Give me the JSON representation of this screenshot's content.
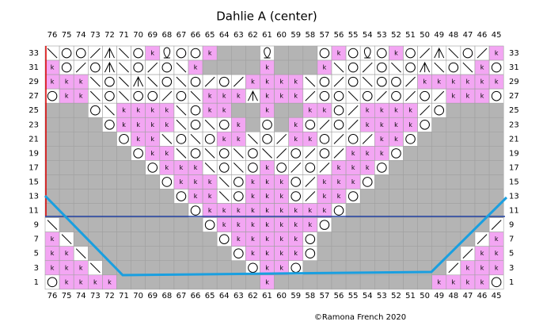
{
  "title": "Dahlie A (center)",
  "credit": "©Ramona French 2020",
  "columns": [
    76,
    75,
    74,
    73,
    72,
    71,
    70,
    69,
    68,
    67,
    66,
    65,
    64,
    63,
    62,
    61,
    60,
    59,
    58,
    57,
    56,
    55,
    54,
    53,
    52,
    51,
    50,
    49,
    48,
    47,
    46,
    45
  ],
  "rows": [
    {
      "number": 33,
      "cells": "boo/abokqookxxxqxxxokoqoko/abo/k"
    },
    {
      "number": 31,
      "cells": "ko/oabo/obkxxxxkxxxkbo/oboabobko"
    },
    {
      "number": 29,
      "cells": "kkkbobabobo/o/kkkkbo/oboo/kkkkkk"
    },
    {
      "number": 27,
      "cells": "okkboboo/obkkkakkk/oobo/o/o/kkko"
    },
    {
      "number": 25,
      "cells": "xxxobkkkkbokkxxkxxkko/kkkk/oxxxx"
    },
    {
      "number": 23,
      "cells": "xxxxokkkkbobokxoxko/o/kkkkoxxxxx"
    },
    {
      "number": 21,
      "cells": "xxxxxokkbobokkbo/kko/o/kkoxxxxxx"
    },
    {
      "number": 19,
      "cells": "xxxxxxokkbobobob/o/o/kkkoxxxxxxx"
    },
    {
      "number": 17,
      "cells": "xxxxxxxokkkboboko/o/kkkoxxxxxxxx"
    },
    {
      "number": 15,
      "cells": "xxxxxxxxokkkbokkko/kkkoxxxxxxxxx"
    },
    {
      "number": 13,
      "cells": "xxxxxxxxxokkbokkko/kkoxxxxxxxxxx"
    },
    {
      "number": 11,
      "cells": "xxxxxxxxxxokkkkkkkkkoxxxxxxxxxxx"
    },
    {
      "number": 9,
      "cells": "bxxxxxxxxxxokkkkkkkoxxxxxxxxxxx/"
    },
    {
      "number": 7,
      "cells": "kbxxxxxxxxxxokkkkkoxxxxxxxxxxx/k"
    },
    {
      "number": 5,
      "cells": "kkbxxxxxxxxxxokkkkoxxxxxxxxxx/kk"
    },
    {
      "number": 3,
      "cells": "kkkbxxxxxxxxxxokkoxxxxxxxxxx/kkk"
    },
    {
      "number": 1,
      "cells": "okkkkxxxxxxxxxxkxxxxxxxxxxxkkkko"
    }
  ]
}
